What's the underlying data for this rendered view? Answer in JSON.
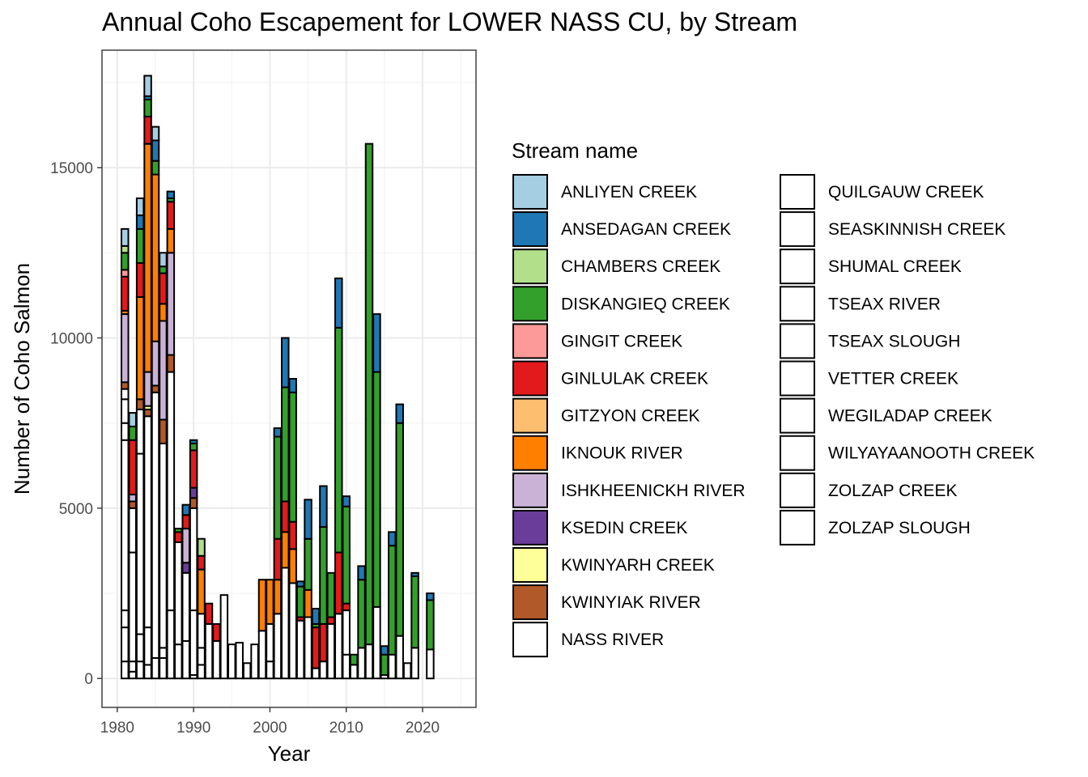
{
  "chart_data": {
    "type": "bar",
    "stacked": true,
    "title": "Annual Coho Escapement for LOWER NASS CU, by Stream",
    "xlabel": "Year",
    "ylabel": "Number of Coho Salmon",
    "xlim": [
      1978,
      2027
    ],
    "ylim": [
      -850,
      18450
    ],
    "x_ticks": [
      1980,
      1990,
      2000,
      2010,
      2020
    ],
    "y_ticks": [
      0,
      5000,
      10000,
      15000
    ],
    "grid": true,
    "legend": {
      "title": "Stream name",
      "placement": "right",
      "columns": 2
    },
    "series": [
      {
        "name": "ANLIYEN CREEK",
        "color": "#A6CEE3"
      },
      {
        "name": "ANSEDAGAN CREEK",
        "color": "#1F78B4"
      },
      {
        "name": "CHAMBERS CREEK",
        "color": "#B2DF8A"
      },
      {
        "name": "DISKANGIEQ CREEK",
        "color": "#33A02C"
      },
      {
        "name": "GINGIT CREEK",
        "color": "#FB9A99"
      },
      {
        "name": "GINLULAK CREEK",
        "color": "#E31A1C"
      },
      {
        "name": "GITZYON CREEK",
        "color": "#FDBF6F"
      },
      {
        "name": "IKNOUK RIVER",
        "color": "#FF7F00"
      },
      {
        "name": "ISHKHEENICKH RIVER",
        "color": "#CAB2D6"
      },
      {
        "name": "KSEDIN CREEK",
        "color": "#6A3D9A"
      },
      {
        "name": "KWINYARH CREEK",
        "color": "#FFFF99"
      },
      {
        "name": "KWINYIAK RIVER",
        "color": "#B15928"
      },
      {
        "name": "NASS RIVER",
        "color": "#FFFFFF"
      },
      {
        "name": "QUILGAUW CREEK",
        "color": "#FFFFFF"
      },
      {
        "name": "SEASKINNISH CREEK",
        "color": "#FFFFFF"
      },
      {
        "name": "SHUMAL CREEK",
        "color": "#FFFFFF"
      },
      {
        "name": "TSEAX RIVER",
        "color": "#FFFFFF"
      },
      {
        "name": "TSEAX SLOUGH",
        "color": "#FFFFFF"
      },
      {
        "name": "VETTER CREEK",
        "color": "#FFFFFF"
      },
      {
        "name": "WEGILADAP CREEK",
        "color": "#FFFFFF"
      },
      {
        "name": "WILYAYAANOOTH CREEK",
        "color": "#FFFFFF"
      },
      {
        "name": "ZOLZAP CREEK",
        "color": "#FFFFFF"
      },
      {
        "name": "ZOLZAP SLOUGH",
        "color": "#FFFFFF"
      }
    ],
    "bars": [
      {
        "year": 1981,
        "stack": [
          [
            "NASS RIVER",
            500
          ],
          [
            "QUILGAUW CREEK",
            1000
          ],
          [
            "SEASKINNISH CREEK",
            500
          ],
          [
            "TSEAX RIVER",
            5000
          ],
          [
            "VETTER CREEK",
            500
          ],
          [
            "WEGILADAP CREEK",
            700
          ],
          [
            "ZOLZAP CREEK",
            300
          ],
          [
            "KWINYIAK RIVER",
            200
          ],
          [
            "ISHKHEENICKH RIVER",
            2000
          ],
          [
            "IKNOUK RIVER",
            100
          ],
          [
            "GINLULAK CREEK",
            1000
          ],
          [
            "GINGIT CREEK",
            200
          ],
          [
            "DISKANGIEQ CREEK",
            500
          ],
          [
            "CHAMBERS CREEK",
            200
          ],
          [
            "ANLIYEN CREEK",
            500
          ]
        ]
      },
      {
        "year": 1982,
        "stack": [
          [
            "NASS RIVER",
            200
          ],
          [
            "QUILGAUW CREEK",
            300
          ],
          [
            "SEASKINNISH CREEK",
            3200
          ],
          [
            "TSEAX RIVER",
            1300
          ],
          [
            "KWINYIAK RIVER",
            200
          ],
          [
            "ISHKHEENICKH RIVER",
            200
          ],
          [
            "GINLULAK CREEK",
            1600
          ],
          [
            "DISKANGIEQ CREEK",
            400
          ],
          [
            "ANLIYEN CREEK",
            400
          ]
        ]
      },
      {
        "year": 1983,
        "stack": [
          [
            "NASS RIVER",
            500
          ],
          [
            "QUILGAUW CREEK",
            800
          ],
          [
            "SEASKINNISH CREEK",
            5300
          ],
          [
            "TSEAX RIVER",
            1300
          ],
          [
            "KWINYIAK RIVER",
            300
          ],
          [
            "IKNOUK RIVER",
            3000
          ],
          [
            "GINLULAK CREEK",
            1000
          ],
          [
            "DISKANGIEQ CREEK",
            1000
          ],
          [
            "ANSEDAGAN CREEK",
            400
          ],
          [
            "ANLIYEN CREEK",
            500
          ]
        ]
      },
      {
        "year": 1984,
        "stack": [
          [
            "NASS RIVER",
            400
          ],
          [
            "QUILGAUW CREEK",
            1100
          ],
          [
            "SEASKINNISH CREEK",
            6200
          ],
          [
            "KWINYIAK RIVER",
            200
          ],
          [
            "KWINYARH CREEK",
            100
          ],
          [
            "ISHKHEENICKH RIVER",
            1000
          ],
          [
            "IKNOUK RIVER",
            6700
          ],
          [
            "GINLULAK CREEK",
            800
          ],
          [
            "DISKANGIEQ CREEK",
            500
          ],
          [
            "ANSEDAGAN CREEK",
            100
          ],
          [
            "ANLIYEN CREEK",
            600
          ]
        ]
      },
      {
        "year": 1985,
        "stack": [
          [
            "NASS RIVER",
            600
          ],
          [
            "QUILGAUW CREEK",
            7800
          ],
          [
            "KWINYIAK RIVER",
            200
          ],
          [
            "ISHKHEENICKH RIVER",
            1300
          ],
          [
            "IKNOUK RIVER",
            4900
          ],
          [
            "DISKANGIEQ CREEK",
            400
          ],
          [
            "ANSEDAGAN CREEK",
            600
          ],
          [
            "ANLIYEN CREEK",
            400
          ]
        ]
      },
      {
        "year": 1986,
        "stack": [
          [
            "NASS RIVER",
            600
          ],
          [
            "QUILGAUW CREEK",
            300
          ],
          [
            "SEASKINNISH CREEK",
            6000
          ],
          [
            "KWINYIAK RIVER",
            700
          ],
          [
            "ISHKHEENICKH RIVER",
            2900
          ],
          [
            "IKNOUK RIVER",
            500
          ],
          [
            "GINLULAK CREEK",
            900
          ],
          [
            "DISKANGIEQ CREEK",
            200
          ],
          [
            "ANLIYEN CREEK",
            400
          ]
        ]
      },
      {
        "year": 1987,
        "stack": [
          [
            "NASS RIVER",
            2000
          ],
          [
            "QUILGAUW CREEK",
            7000
          ],
          [
            "KWINYIAK RIVER",
            500
          ],
          [
            "ISHKHEENICKH RIVER",
            3000
          ],
          [
            "IKNOUK RIVER",
            700
          ],
          [
            "GINLULAK CREEK",
            800
          ],
          [
            "DISKANGIEQ CREEK",
            100
          ],
          [
            "ANSEDAGAN CREEK",
            200
          ]
        ]
      },
      {
        "year": 1988,
        "stack": [
          [
            "NASS RIVER",
            1000
          ],
          [
            "QUILGAUW CREEK",
            3000
          ],
          [
            "GINLULAK CREEK",
            300
          ],
          [
            "DISKANGIEQ CREEK",
            100
          ]
        ]
      },
      {
        "year": 1989,
        "stack": [
          [
            "NASS RIVER",
            1100
          ],
          [
            "QUILGAUW CREEK",
            2000
          ],
          [
            "KSEDIN CREEK",
            300
          ],
          [
            "ISHKHEENICKH RIVER",
            1000
          ],
          [
            "GINLULAK CREEK",
            400
          ],
          [
            "ANSEDAGAN CREEK",
            300
          ]
        ]
      },
      {
        "year": 1990,
        "stack": [
          [
            "NASS RIVER",
            100
          ],
          [
            "QUILGAUW CREEK",
            1900
          ],
          [
            "SEASKINNISH CREEK",
            3000
          ],
          [
            "KWINYIAK RIVER",
            300
          ],
          [
            "KSEDIN CREEK",
            300
          ],
          [
            "GINLULAK CREEK",
            1100
          ],
          [
            "DISKANGIEQ CREEK",
            200
          ],
          [
            "ANSEDAGAN CREEK",
            100
          ]
        ]
      },
      {
        "year": 1991,
        "stack": [
          [
            "NASS RIVER",
            400
          ],
          [
            "QUILGAUW CREEK",
            500
          ],
          [
            "SEASKINNISH CREEK",
            1000
          ],
          [
            "IKNOUK RIVER",
            1300
          ],
          [
            "GINLULAK CREEK",
            400
          ],
          [
            "CHAMBERS CREEK",
            500
          ]
        ]
      },
      {
        "year": 1992,
        "stack": [
          [
            "QUILGAUW CREEK",
            1600
          ],
          [
            "GINLULAK CREEK",
            600
          ]
        ]
      },
      {
        "year": 1993,
        "stack": [
          [
            "QUILGAUW CREEK",
            1100
          ],
          [
            "GINLULAK CREEK",
            500
          ]
        ]
      },
      {
        "year": 1994,
        "stack": [
          [
            "QUILGAUW CREEK",
            2450
          ]
        ]
      },
      {
        "year": 1995,
        "stack": [
          [
            "QUILGAUW CREEK",
            1000
          ]
        ]
      },
      {
        "year": 1996,
        "stack": [
          [
            "QUILGAUW CREEK",
            1050
          ]
        ]
      },
      {
        "year": 1997,
        "stack": [
          [
            "QUILGAUW CREEK",
            450
          ]
        ]
      },
      {
        "year": 1998,
        "stack": [
          [
            "QUILGAUW CREEK",
            1000
          ]
        ]
      },
      {
        "year": 1999,
        "stack": [
          [
            "QUILGAUW CREEK",
            1400
          ],
          [
            "IKNOUK RIVER",
            1500
          ]
        ]
      },
      {
        "year": 2000,
        "stack": [
          [
            "QUILGAUW CREEK",
            500
          ],
          [
            "SEASKINNISH CREEK",
            1100
          ],
          [
            "IKNOUK RIVER",
            1300
          ]
        ]
      },
      {
        "year": 2001,
        "stack": [
          [
            "QUILGAUW CREEK",
            1900
          ],
          [
            "IKNOUK RIVER",
            1000
          ],
          [
            "GINLULAK CREEK",
            1200
          ],
          [
            "DISKANGIEQ CREEK",
            3000
          ],
          [
            "ANSEDAGAN CREEK",
            250
          ]
        ]
      },
      {
        "year": 2002,
        "stack": [
          [
            "QUILGAUW CREEK",
            3250
          ],
          [
            "IKNOUK RIVER",
            1050
          ],
          [
            "GINLULAK CREEK",
            900
          ],
          [
            "DISKANGIEQ CREEK",
            3350
          ],
          [
            "ANSEDAGAN CREEK",
            1450
          ]
        ]
      },
      {
        "year": 2003,
        "stack": [
          [
            "QUILGAUW CREEK",
            2800
          ],
          [
            "IKNOUK RIVER",
            1000
          ],
          [
            "GINLULAK CREEK",
            800
          ],
          [
            "DISKANGIEQ CREEK",
            3800
          ],
          [
            "ANSEDAGAN CREEK",
            400
          ]
        ]
      },
      {
        "year": 2004,
        "stack": [
          [
            "QUILGAUW CREEK",
            1700
          ],
          [
            "GINLULAK CREEK",
            100
          ],
          [
            "DISKANGIEQ CREEK",
            900
          ],
          [
            "ANSEDAGAN CREEK",
            150
          ]
        ]
      },
      {
        "year": 2005,
        "stack": [
          [
            "QUILGAUW CREEK",
            1800
          ],
          [
            "IKNOUK RIVER",
            800
          ],
          [
            "DISKANGIEQ CREEK",
            1500
          ],
          [
            "ANSEDAGAN CREEK",
            1150
          ]
        ]
      },
      {
        "year": 2006,
        "stack": [
          [
            "QUILGAUW CREEK",
            300
          ],
          [
            "GINLULAK CREEK",
            1200
          ],
          [
            "DISKANGIEQ CREEK",
            100
          ],
          [
            "ANSEDAGAN CREEK",
            450
          ]
        ]
      },
      {
        "year": 2007,
        "stack": [
          [
            "QUILGAUW CREEK",
            500
          ],
          [
            "GINLULAK CREEK",
            1100
          ],
          [
            "DISKANGIEQ CREEK",
            2850
          ],
          [
            "ANSEDAGAN CREEK",
            1200
          ]
        ]
      },
      {
        "year": 2008,
        "stack": [
          [
            "QUILGAUW CREEK",
            1600
          ],
          [
            "GINLULAK CREEK",
            200
          ],
          [
            "DISKANGIEQ CREEK",
            1300
          ]
        ]
      },
      {
        "year": 2009,
        "stack": [
          [
            "QUILGAUW CREEK",
            1900
          ],
          [
            "GINLULAK CREEK",
            1800
          ],
          [
            "DISKANGIEQ CREEK",
            6600
          ],
          [
            "ANSEDAGAN CREEK",
            1450
          ]
        ]
      },
      {
        "year": 2010,
        "stack": [
          [
            "QUILGAUW CREEK",
            700
          ],
          [
            "SEASKINNISH CREEK",
            1300
          ],
          [
            "GINLULAK CREEK",
            200
          ],
          [
            "DISKANGIEQ CREEK",
            2850
          ],
          [
            "ANSEDAGAN CREEK",
            300
          ]
        ]
      },
      {
        "year": 2011,
        "stack": [
          [
            "QUILGAUW CREEK",
            400
          ],
          [
            "DISKANGIEQ CREEK",
            300
          ]
        ]
      },
      {
        "year": 2012,
        "stack": [
          [
            "QUILGAUW CREEK",
            900
          ],
          [
            "DISKANGIEQ CREEK",
            2000
          ],
          [
            "ANSEDAGAN CREEK",
            400
          ]
        ]
      },
      {
        "year": 2013,
        "stack": [
          [
            "QUILGAUW CREEK",
            1000
          ],
          [
            "DISKANGIEQ CREEK",
            14700
          ]
        ]
      },
      {
        "year": 2014,
        "stack": [
          [
            "QUILGAUW CREEK",
            2100
          ],
          [
            "DISKANGIEQ CREEK",
            6900
          ],
          [
            "ANSEDAGAN CREEK",
            1700
          ]
        ]
      },
      {
        "year": 2015,
        "stack": [
          [
            "QUILGAUW CREEK",
            100
          ],
          [
            "DISKANGIEQ CREEK",
            600
          ],
          [
            "ANSEDAGAN CREEK",
            250
          ]
        ]
      },
      {
        "year": 2016,
        "stack": [
          [
            "QUILGAUW CREEK",
            700
          ],
          [
            "DISKANGIEQ CREEK",
            3200
          ],
          [
            "ANSEDAGAN CREEK",
            400
          ]
        ]
      },
      {
        "year": 2017,
        "stack": [
          [
            "QUILGAUW CREEK",
            1250
          ],
          [
            "DISKANGIEQ CREEK",
            6250
          ],
          [
            "ANSEDAGAN CREEK",
            550
          ]
        ]
      },
      {
        "year": 2018,
        "stack": [
          [
            "QUILGAUW CREEK",
            450
          ]
        ]
      },
      {
        "year": 2019,
        "stack": [
          [
            "QUILGAUW CREEK",
            900
          ],
          [
            "DISKANGIEQ CREEK",
            2100
          ],
          [
            "ANSEDAGAN CREEK",
            100
          ]
        ]
      },
      {
        "year": 2021,
        "stack": [
          [
            "QUILGAUW CREEK",
            850
          ],
          [
            "DISKANGIEQ CREEK",
            1450
          ],
          [
            "ANSEDAGAN CREEK",
            200
          ]
        ]
      }
    ]
  }
}
